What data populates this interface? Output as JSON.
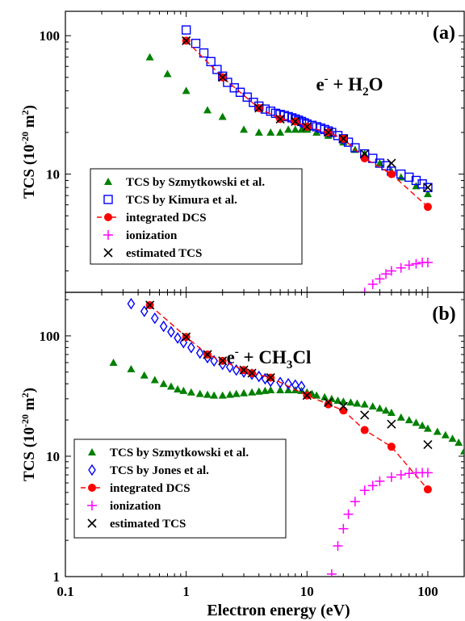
{
  "figure": {
    "xlabel": "Electron energy (eV)",
    "ylabel_main": "TCS (10",
    "ylabel_sup1": "-20",
    "ylabel_mid": " m",
    "ylabel_sup2": "2",
    "ylabel_end": ")"
  },
  "colors": {
    "szmytkowski": "#008000",
    "kimura": "#0000ff",
    "jones": "#0000ff",
    "integrated": "#ff0000",
    "ionization": "#ff00ff",
    "estimated": "#000000"
  },
  "chart_data": [
    {
      "type": "scatter",
      "panel_label": "(a)",
      "reaction": {
        "pre": "e",
        "sup": "-",
        "mid": " + H",
        "sub": "2",
        "post": "O"
      },
      "xscale": "log",
      "yscale": "log",
      "xlim": [
        0.1,
        200
      ],
      "ylim": [
        1.4,
        150
      ],
      "xticks": [],
      "xtick_labels": [],
      "yticks": [
        10,
        100
      ],
      "ytick_labels": [
        "10",
        "100"
      ],
      "legend_position": "lower-left",
      "series": [
        {
          "key": "szmytkowski",
          "name": "TCS by Szmytkowski et al.",
          "marker": "triangle",
          "x": [
            0.5,
            0.7,
            1,
            1.5,
            2,
            3,
            4,
            5,
            6,
            7,
            8,
            9,
            10,
            12,
            15,
            20,
            25,
            30,
            40,
            50,
            60,
            80,
            100
          ],
          "y": [
            70,
            53,
            40,
            29,
            26,
            21,
            20,
            20,
            20,
            21,
            21,
            21,
            21,
            20,
            19,
            17,
            15,
            14,
            12,
            10.5,
            9.5,
            8.2,
            7.2
          ]
        },
        {
          "key": "kimura",
          "name": "TCS by Kimura et al.",
          "marker": "square",
          "x": [
            1,
            1.2,
            1.4,
            1.6,
            1.8,
            2,
            2.2,
            2.5,
            2.8,
            3.2,
            3.6,
            4,
            4.5,
            5,
            5.5,
            6,
            6.5,
            7,
            7.5,
            8,
            8.5,
            9,
            9.5,
            10,
            11,
            12,
            13,
            14,
            15,
            16,
            18,
            20,
            22,
            25,
            30,
            35,
            40,
            45,
            50,
            60,
            70,
            80,
            90,
            100
          ],
          "y": [
            110,
            88,
            75,
            65,
            57,
            51,
            46,
            42,
            39,
            36,
            33,
            31,
            29.5,
            28.5,
            27.5,
            27,
            26.5,
            26,
            25.5,
            25,
            24.5,
            24,
            23.5,
            23,
            22.5,
            22,
            21.5,
            21,
            20.5,
            20,
            19,
            18,
            17,
            15.5,
            14,
            13,
            12,
            11.5,
            10.5,
            10,
            9.5,
            9,
            8.5,
            8
          ]
        },
        {
          "key": "integrated",
          "name": "integrated DCS",
          "marker": "circle",
          "line": true,
          "x": [
            1,
            2,
            4,
            6,
            8,
            10,
            15,
            20,
            30,
            50,
            100
          ],
          "y": [
            92,
            50,
            30,
            25,
            24,
            22,
            20,
            18,
            13,
            10,
            5.8
          ]
        },
        {
          "key": "ionization",
          "name": "ionization",
          "marker": "plus",
          "x": [
            30,
            35,
            40,
            45,
            50,
            60,
            70,
            80,
            90,
            100
          ],
          "y": [
            1.4,
            1.6,
            1.75,
            1.9,
            2.0,
            2.1,
            2.2,
            2.25,
            2.3,
            2.3
          ]
        },
        {
          "key": "estimated",
          "name": "estimated TCS",
          "marker": "x",
          "x": [
            1,
            2,
            4,
            6,
            8,
            10,
            15,
            20,
            30,
            50,
            100
          ],
          "y": [
            92,
            50,
            30,
            25,
            24,
            22,
            20,
            18,
            14,
            12,
            8
          ]
        }
      ]
    },
    {
      "type": "scatter",
      "panel_label": "(b)",
      "reaction": {
        "pre": "e",
        "sup": "-",
        "mid": " + CH",
        "sub": "3",
        "post": "Cl"
      },
      "xscale": "log",
      "yscale": "log",
      "xlim": [
        0.1,
        200
      ],
      "ylim": [
        1,
        230
      ],
      "xticks": [
        0.1,
        1,
        10,
        100
      ],
      "xtick_labels": [
        "0.1",
        "1",
        "10",
        "100"
      ],
      "yticks": [
        1,
        10,
        100
      ],
      "ytick_labels": [
        "1",
        "10",
        "100"
      ],
      "legend_position": "lower-left",
      "series": [
        {
          "key": "szmytkowski",
          "name": "TCS by Szmytkowski et al.",
          "marker": "triangle",
          "x": [
            0.25,
            0.35,
            0.45,
            0.55,
            0.65,
            0.75,
            0.85,
            0.95,
            1.1,
            1.3,
            1.5,
            1.7,
            2,
            2.3,
            2.6,
            3,
            3.5,
            4,
            4.5,
            5,
            6,
            7,
            8,
            9,
            10,
            11,
            12,
            14,
            16,
            18,
            20,
            23,
            26,
            30,
            35,
            40,
            45,
            50,
            60,
            70,
            80,
            90,
            100,
            120,
            140,
            160,
            180,
            200
          ],
          "y": [
            60,
            53,
            47,
            43,
            40,
            38,
            36,
            35,
            34,
            33,
            32.5,
            32,
            32,
            32.5,
            33,
            33.5,
            34,
            34.5,
            35,
            35.5,
            35.5,
            35.5,
            35.5,
            35,
            34,
            33,
            32,
            31,
            30,
            29,
            28.5,
            28,
            27.5,
            27,
            26,
            25,
            24,
            23,
            21,
            20,
            19,
            18,
            17,
            16,
            15,
            14,
            13,
            11
          ]
        },
        {
          "key": "jones",
          "name": "TCS by Jones et al.",
          "marker": "diamond",
          "x": [
            0.35,
            0.45,
            0.55,
            0.65,
            0.75,
            0.85,
            0.95,
            1.1,
            1.3,
            1.5,
            1.7,
            2,
            2.3,
            2.6,
            3,
            3.5,
            4,
            4.5,
            5,
            6,
            7,
            8,
            9
          ],
          "y": [
            185,
            160,
            140,
            120,
            108,
            96,
            88,
            80,
            72,
            66,
            62,
            58,
            55,
            52,
            50,
            48,
            46,
            44,
            42,
            41,
            40,
            39,
            38
          ]
        },
        {
          "key": "integrated",
          "name": "integrated DCS",
          "marker": "circle",
          "line": true,
          "x": [
            0.5,
            1,
            1.5,
            2,
            3,
            3.5,
            5,
            10,
            15,
            20,
            30,
            50,
            100
          ],
          "y": [
            180,
            98,
            70,
            62,
            52,
            49,
            45,
            32,
            27,
            24,
            16.5,
            12,
            5.3
          ]
        },
        {
          "key": "ionization",
          "name": "ionization",
          "marker": "plus",
          "x": [
            16,
            18,
            20,
            22,
            25,
            30,
            35,
            40,
            50,
            60,
            70,
            80,
            90,
            100
          ],
          "y": [
            1.05,
            1.8,
            2.5,
            3.3,
            4.2,
            5.2,
            5.7,
            6.2,
            6.7,
            7.0,
            7.2,
            7.3,
            7.3,
            7.3
          ]
        },
        {
          "key": "estimated",
          "name": "estimated TCS",
          "marker": "x",
          "x": [
            0.5,
            1,
            1.5,
            2,
            3,
            3.5,
            5,
            10,
            15,
            20,
            30,
            50,
            100
          ],
          "y": [
            180,
            98,
            70,
            62,
            52,
            49,
            45,
            32,
            28,
            26,
            22,
            18.5,
            12.5
          ]
        }
      ]
    }
  ]
}
